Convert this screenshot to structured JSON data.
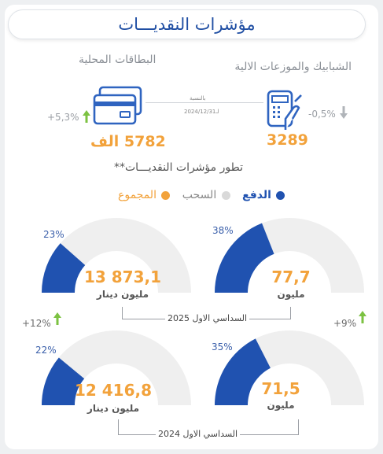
{
  "title": "مؤشرات النقديـــات",
  "top": {
    "terminals": {
      "label": "الشبابيك والموزعات الالية",
      "value": "3289",
      "change": "-0,5%",
      "icon": "payment-terminal-icon"
    },
    "cards": {
      "label": "البطاقات المحلية",
      "value": "5782 الف",
      "change": "+5,3%",
      "icon": "bank-cards-icon"
    },
    "relative_note": "بالنسبة",
    "relative_date": "لـ2024/12/31"
  },
  "section_title": "تطور مؤشرات النقديـــات**",
  "legend": {
    "payment": "الدفع",
    "withdrawal": "السحب",
    "total": "المجموع"
  },
  "colors": {
    "payment": "#2052b0",
    "withdrawal": "#d9d9d9",
    "total": "#f2a23b",
    "growth": "#7cc242"
  },
  "periods": {
    "p2025": "السداسي الاول 2025",
    "p2024": "السداسي الاول 2024"
  },
  "gauges": {
    "g2025_payment": {
      "percent": 38,
      "percent_label": "38%",
      "value": "77,7",
      "unit": "مليون"
    },
    "g2025_total": {
      "percent": 23,
      "percent_label": "23%",
      "value": "13 873,1",
      "unit": "مليون دينار"
    },
    "g2024_payment": {
      "percent": 35,
      "percent_label": "35%",
      "value": "71,5",
      "unit": "مليون"
    },
    "g2024_total": {
      "percent": 22,
      "percent_label": "22%",
      "value": "12 416,8",
      "unit": "مليون دينار"
    }
  },
  "growth": {
    "payment": "+9%",
    "total": "+12%"
  }
}
